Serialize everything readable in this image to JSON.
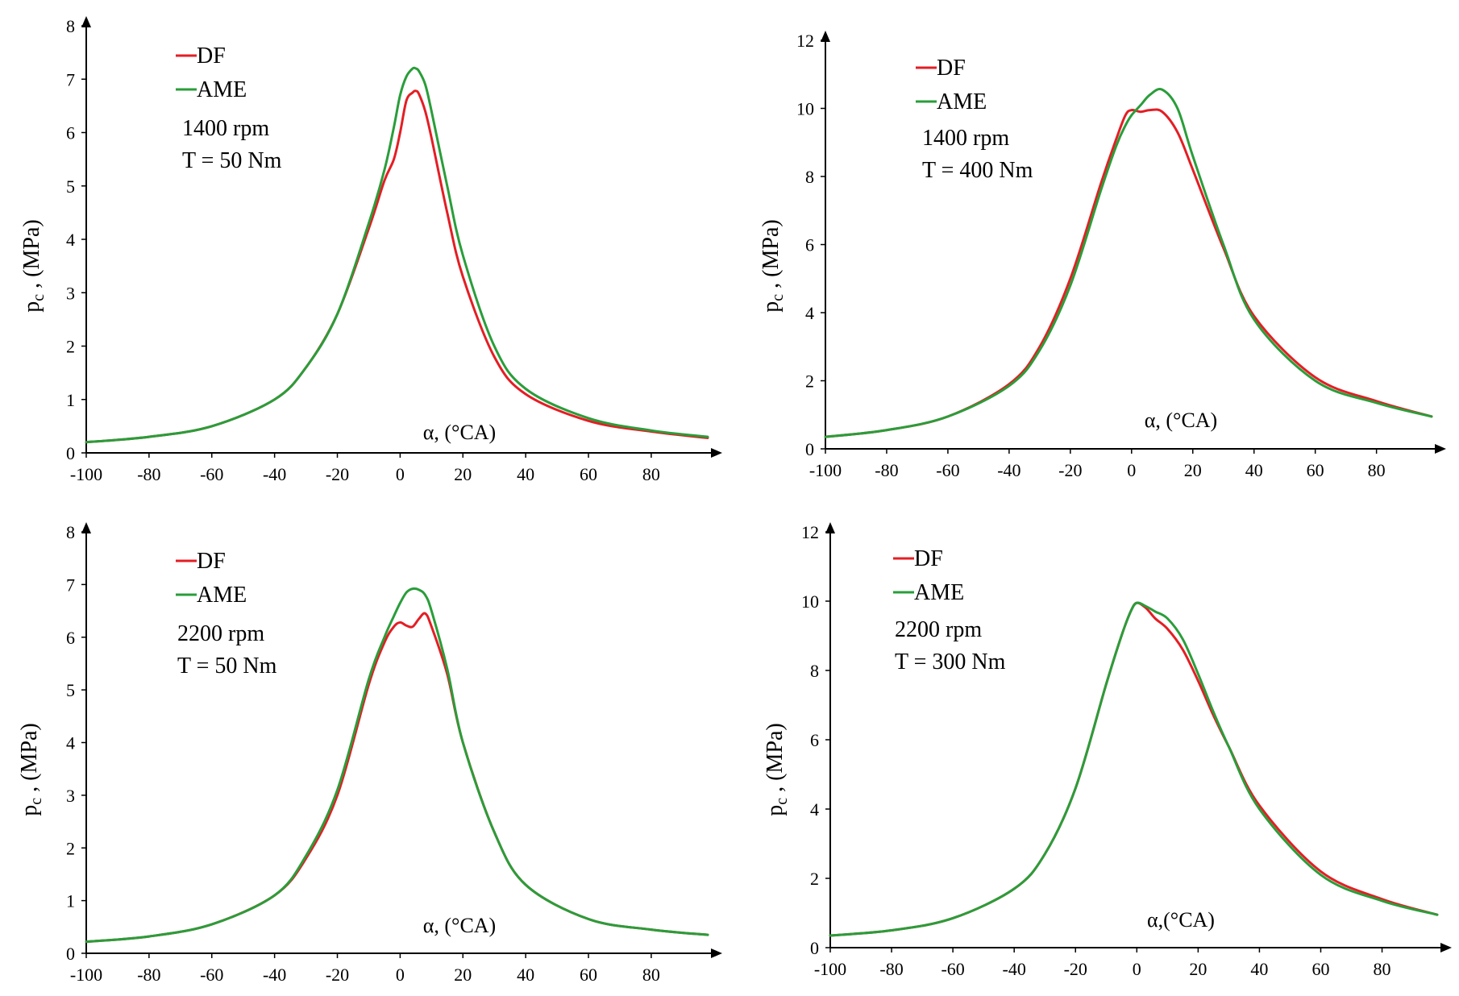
{
  "chart_data": [
    {
      "type": "line",
      "panel": "top-left",
      "xlabel": "α, (°CA)",
      "ylabel": "p_c , (MPa)",
      "ylabel_main": "p",
      "ylabel_sub": "c",
      "ylabel_rest": " , (MPa)",
      "xlim": [
        -100,
        98
      ],
      "ylim": [
        0,
        8
      ],
      "xticks": [
        -100,
        -80,
        -60,
        -40,
        -20,
        0,
        20,
        40,
        60,
        80
      ],
      "yticks": [
        0,
        1,
        2,
        3,
        4,
        5,
        6,
        7,
        8
      ],
      "annotations": [
        "1400 rpm",
        "T = 50 Nm"
      ],
      "series": [
        {
          "name": "DF",
          "color": "#e31e24",
          "x": [
            -100,
            -80,
            -60,
            -40,
            -30,
            -20,
            -10,
            -5,
            -2,
            0,
            2,
            4,
            5,
            6,
            8,
            10,
            15,
            20,
            30,
            40,
            60,
            80,
            98
          ],
          "y": [
            0.2,
            0.3,
            0.5,
            1.0,
            1.6,
            2.6,
            4.2,
            5.1,
            5.5,
            6.0,
            6.6,
            6.75,
            6.78,
            6.72,
            6.4,
            5.9,
            4.5,
            3.3,
            1.8,
            1.1,
            0.6,
            0.4,
            0.28
          ]
        },
        {
          "name": "AME",
          "color": "#2a9d3a",
          "x": [
            -100,
            -80,
            -60,
            -40,
            -30,
            -20,
            -10,
            -5,
            -2,
            0,
            2,
            4,
            5,
            6,
            8,
            10,
            15,
            20,
            30,
            40,
            60,
            80,
            98
          ],
          "y": [
            0.2,
            0.3,
            0.5,
            1.0,
            1.6,
            2.6,
            4.3,
            5.3,
            6.1,
            6.7,
            7.05,
            7.2,
            7.2,
            7.15,
            6.9,
            6.4,
            5.0,
            3.7,
            2.0,
            1.2,
            0.65,
            0.42,
            0.3
          ]
        }
      ]
    },
    {
      "type": "line",
      "panel": "top-right",
      "xlabel": "α, (°CA)",
      "ylabel": "p_c , (MPa)",
      "ylabel_main": "p",
      "ylabel_sub": "c",
      "ylabel_rest": " , (MPa)",
      "xlim": [
        -100,
        98
      ],
      "ylim": [
        0,
        12
      ],
      "xticks": [
        -100,
        -80,
        -60,
        -40,
        -20,
        0,
        20,
        40,
        60,
        80
      ],
      "yticks": [
        0,
        2,
        4,
        6,
        8,
        10,
        12
      ],
      "annotations": [
        "1400 rpm",
        "T = 400 Nm"
      ],
      "series": [
        {
          "name": "DF",
          "color": "#e31e24",
          "x": [
            -100,
            -80,
            -60,
            -40,
            -30,
            -20,
            -10,
            -5,
            -2,
            0,
            3,
            6,
            10,
            15,
            20,
            30,
            40,
            60,
            80,
            98
          ],
          "y": [
            0.35,
            0.55,
            0.95,
            1.9,
            3.0,
            5.0,
            7.8,
            9.1,
            9.8,
            9.95,
            9.9,
            9.95,
            9.9,
            9.3,
            8.2,
            5.9,
            3.9,
            2.1,
            1.4,
            0.95
          ]
        },
        {
          "name": "AME",
          "color": "#2a9d3a",
          "x": [
            -100,
            -80,
            -60,
            -40,
            -30,
            -20,
            -10,
            -5,
            -2,
            0,
            3,
            6,
            10,
            15,
            20,
            30,
            40,
            60,
            80,
            98
          ],
          "y": [
            0.35,
            0.55,
            0.95,
            1.85,
            2.9,
            4.8,
            7.6,
            8.9,
            9.5,
            9.8,
            10.1,
            10.4,
            10.55,
            10.0,
            8.6,
            6.0,
            3.8,
            2.0,
            1.35,
            0.95
          ]
        }
      ]
    },
    {
      "type": "line",
      "panel": "bottom-left",
      "xlabel": "α, (°CA)",
      "ylabel": "p_c , (MPa)",
      "ylabel_main": "p",
      "ylabel_sub": "c",
      "ylabel_rest": " , (MPa)",
      "xlim": [
        -100,
        98
      ],
      "ylim": [
        0,
        8
      ],
      "xticks": [
        -100,
        -80,
        -60,
        -40,
        -20,
        0,
        20,
        40,
        60,
        80
      ],
      "yticks": [
        0,
        1,
        2,
        3,
        4,
        5,
        6,
        7,
        8
      ],
      "annotations": [
        "2200 rpm",
        "T = 50 Nm"
      ],
      "series": [
        {
          "name": "DF",
          "color": "#e31e24",
          "x": [
            -100,
            -80,
            -60,
            -40,
            -30,
            -20,
            -10,
            -5,
            -2,
            0,
            2,
            4,
            6,
            8,
            10,
            15,
            20,
            30,
            40,
            60,
            80,
            98
          ],
          "y": [
            0.22,
            0.32,
            0.55,
            1.1,
            1.8,
            3.0,
            5.1,
            5.9,
            6.2,
            6.28,
            6.22,
            6.2,
            6.35,
            6.45,
            6.2,
            5.3,
            4.0,
            2.3,
            1.3,
            0.65,
            0.45,
            0.35
          ]
        },
        {
          "name": "AME",
          "color": "#2a9d3a",
          "x": [
            -100,
            -80,
            -60,
            -40,
            -30,
            -20,
            -10,
            -5,
            -2,
            0,
            2,
            4,
            6,
            8,
            10,
            15,
            20,
            30,
            40,
            60,
            80,
            98
          ],
          "y": [
            0.22,
            0.32,
            0.55,
            1.1,
            1.85,
            3.1,
            5.2,
            6.0,
            6.4,
            6.65,
            6.85,
            6.92,
            6.9,
            6.8,
            6.5,
            5.4,
            4.0,
            2.3,
            1.3,
            0.65,
            0.45,
            0.35
          ]
        }
      ]
    },
    {
      "type": "line",
      "panel": "bottom-right",
      "xlabel": "α,(°CA)",
      "ylabel": "p_c , (MPa)",
      "ylabel_main": "p",
      "ylabel_sub": "c",
      "ylabel_rest": " , (MPa)",
      "xlim": [
        -100,
        98
      ],
      "ylim": [
        0,
        12
      ],
      "xticks": [
        -100,
        -80,
        -60,
        -40,
        -20,
        0,
        20,
        40,
        60,
        80
      ],
      "yticks": [
        0,
        2,
        4,
        6,
        8,
        10,
        12
      ],
      "annotations": [
        "2200 rpm",
        "T = 300 Nm"
      ],
      "series": [
        {
          "name": "DF",
          "color": "#e31e24",
          "x": [
            -100,
            -80,
            -60,
            -40,
            -30,
            -20,
            -10,
            -5,
            -2,
            0,
            3,
            6,
            10,
            15,
            20,
            25,
            30,
            40,
            60,
            80,
            98
          ],
          "y": [
            0.35,
            0.5,
            0.85,
            1.7,
            2.7,
            4.6,
            7.6,
            9.0,
            9.7,
            9.95,
            9.8,
            9.5,
            9.2,
            8.6,
            7.7,
            6.7,
            5.8,
            4.1,
            2.2,
            1.4,
            0.95
          ]
        },
        {
          "name": "AME",
          "color": "#2a9d3a",
          "x": [
            -100,
            -80,
            -60,
            -40,
            -30,
            -20,
            -10,
            -5,
            -2,
            0,
            3,
            6,
            10,
            15,
            20,
            25,
            30,
            40,
            60,
            80,
            98
          ],
          "y": [
            0.35,
            0.5,
            0.85,
            1.7,
            2.7,
            4.6,
            7.6,
            9.0,
            9.7,
            9.95,
            9.85,
            9.7,
            9.5,
            8.9,
            7.9,
            6.8,
            5.8,
            4.0,
            2.1,
            1.35,
            0.95
          ]
        }
      ]
    }
  ]
}
